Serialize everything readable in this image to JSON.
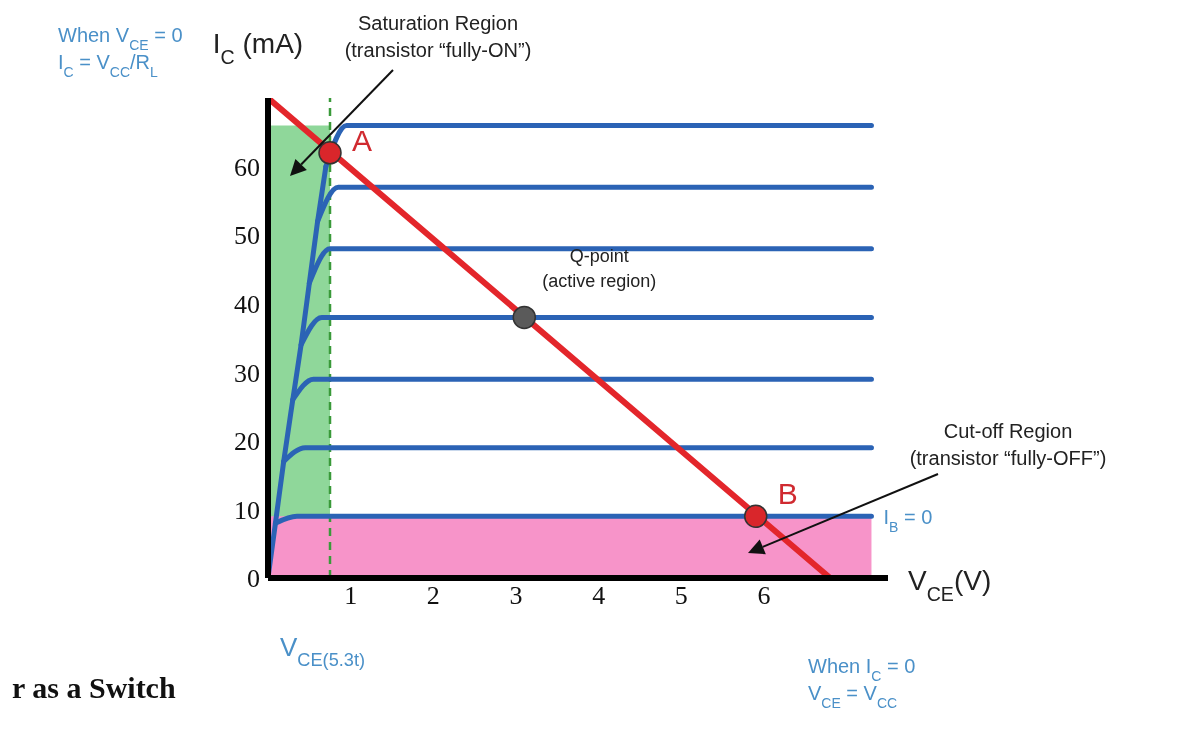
{
  "chart_data": {
    "type": "line",
    "xlabel": "V$_{CE}$(V)",
    "ylabel": "I$_{C}$ (mA)",
    "xlim": [
      0,
      7.5
    ],
    "ylim": [
      0,
      70
    ],
    "xticks": [
      1,
      2,
      3,
      4,
      5,
      6
    ],
    "yticks": [
      0,
      10,
      20,
      30,
      40,
      50,
      60
    ],
    "grid": false,
    "marker": "none",
    "line_style": "solid",
    "series": [
      {
        "color": "#2b63b5",
        "x": [
          0,
          0.09,
          0.19,
          0.3,
          0.4,
          0.5,
          0.6,
          0.7
        ],
        "values": [
          0,
          8,
          17,
          26,
          34,
          43,
          52,
          60
        ]
      },
      {
        "color": "#2b63b5",
        "x": [
          0.09,
          0.35,
          7.3
        ],
        "values": [
          8,
          9,
          9
        ]
      },
      {
        "color": "#2b63b5",
        "x": [
          0.19,
          0.45,
          7.3
        ],
        "values": [
          17,
          19,
          19
        ]
      },
      {
        "color": "#2b63b5",
        "x": [
          0.3,
          0.55,
          7.3
        ],
        "values": [
          26,
          29,
          29
        ]
      },
      {
        "color": "#2b63b5",
        "x": [
          0.4,
          0.65,
          7.3
        ],
        "values": [
          34,
          38,
          38
        ]
      },
      {
        "color": "#2b63b5",
        "x": [
          0.5,
          0.75,
          7.3
        ],
        "values": [
          43,
          48,
          48
        ]
      },
      {
        "color": "#2b63b5",
        "x": [
          0.6,
          0.85,
          7.3
        ],
        "values": [
          52,
          57,
          57
        ]
      },
      {
        "color": "#2b63b5",
        "x": [
          0.7,
          0.95,
          7.3
        ],
        "values": [
          60,
          66,
          66
        ]
      },
      {
        "color": "#e3262b",
        "x": [
          0,
          6.8
        ],
        "values": [
          70,
          0
        ]
      },
      {
        "type": "scatter",
        "marker": "circle",
        "x": [
          0.75,
          3.1,
          5.9
        ],
        "values": [
          62,
          38,
          9
        ],
        "colors": [
          "#d9262b",
          "#5a5a5a",
          "#d9262b"
        ]
      }
    ],
    "bands": [
      {
        "axis": "x",
        "from": 0,
        "to": 0.75,
        "color": "#8fd79a"
      },
      {
        "axis": "y",
        "from": 0,
        "to": 9,
        "color": "#f794c9"
      }
    ],
    "ref_lines": [
      {
        "axis": "x",
        "value": 0.75,
        "label": "V$_{CE(5.3t)}$",
        "color": "#3a9a3a",
        "line_style": "dashed"
      }
    ],
    "annotations": [
      "Saturation Region\n(transistor “fully-ON”)",
      "Cut-off Region\n(transistor “fully-OFF”)",
      "When V$_{CE}$ = 0\nI$_{C}$ = V$_{CC}$/R$_{L}$",
      "When I$_{C}$ = 0\nV$_{CE}$ = V$_{CC}$",
      "r as a Switch",
      {
        "text": "A",
        "x": 0.75,
        "y": 62
      },
      {
        "text": "Q-point\n(active region)",
        "x": 3.1,
        "y": 38
      },
      {
        "text": "B",
        "x": 5.9,
        "y": 9
      },
      {
        "text": "I$_{B}$ = 0",
        "x": 7.3,
        "y": 9
      }
    ]
  }
}
